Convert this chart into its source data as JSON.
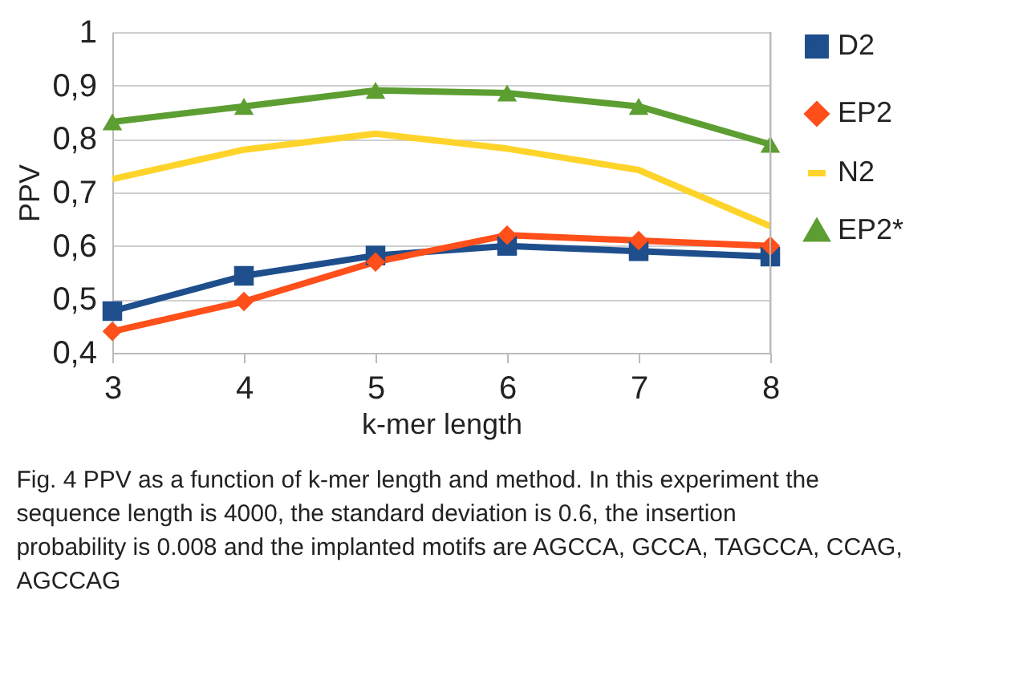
{
  "chart_data": {
    "type": "line",
    "xlabel": "k-mer length",
    "ylabel": "PPV",
    "x": [
      3,
      4,
      5,
      6,
      7,
      8
    ],
    "xlim": [
      3,
      8
    ],
    "xticks": [
      3,
      4,
      5,
      6,
      7,
      8
    ],
    "ylim": [
      0.4,
      1
    ],
    "yticks": [
      {
        "value": 0.4,
        "label": "0,4"
      },
      {
        "value": 0.5,
        "label": "0,5"
      },
      {
        "value": 0.6,
        "label": "0,6"
      },
      {
        "value": 0.7,
        "label": "0,7"
      },
      {
        "value": 0.8,
        "label": "0,8"
      },
      {
        "value": 0.9,
        "label": "0,9"
      },
      1
    ],
    "grid": "y",
    "legend": "right",
    "line_style": "solid",
    "series": [
      {
        "name": "D2",
        "color": "#1f4e8c",
        "marker": "square",
        "values": [
          0.478,
          0.544,
          0.582,
          0.6,
          0.59,
          0.58
        ]
      },
      {
        "name": "EP2",
        "color": "#ff4f1a",
        "marker": "diamond",
        "values": [
          0.44,
          0.496,
          0.57,
          0.62,
          0.61,
          0.6
        ]
      },
      {
        "name": "N2",
        "color": "#ffd42a",
        "marker": "none",
        "values": [
          0.725,
          0.78,
          0.81,
          0.782,
          0.742,
          0.637
        ]
      },
      {
        "name": "EP2*",
        "color": "#5c9e31",
        "marker": "triangle",
        "values": [
          0.832,
          0.861,
          0.891,
          0.886,
          0.861,
          0.79
        ]
      }
    ],
    "annotations": [
      "Fig. 4 PPV as a function of k-mer length and method. In this experiment the sequence length is 4000, the standard deviation is 0.6, the insertion probability is 0.008 and the implanted motifs are AGCCA, GCCA, TAGCCA, CCAG, AGCCAG"
    ]
  }
}
